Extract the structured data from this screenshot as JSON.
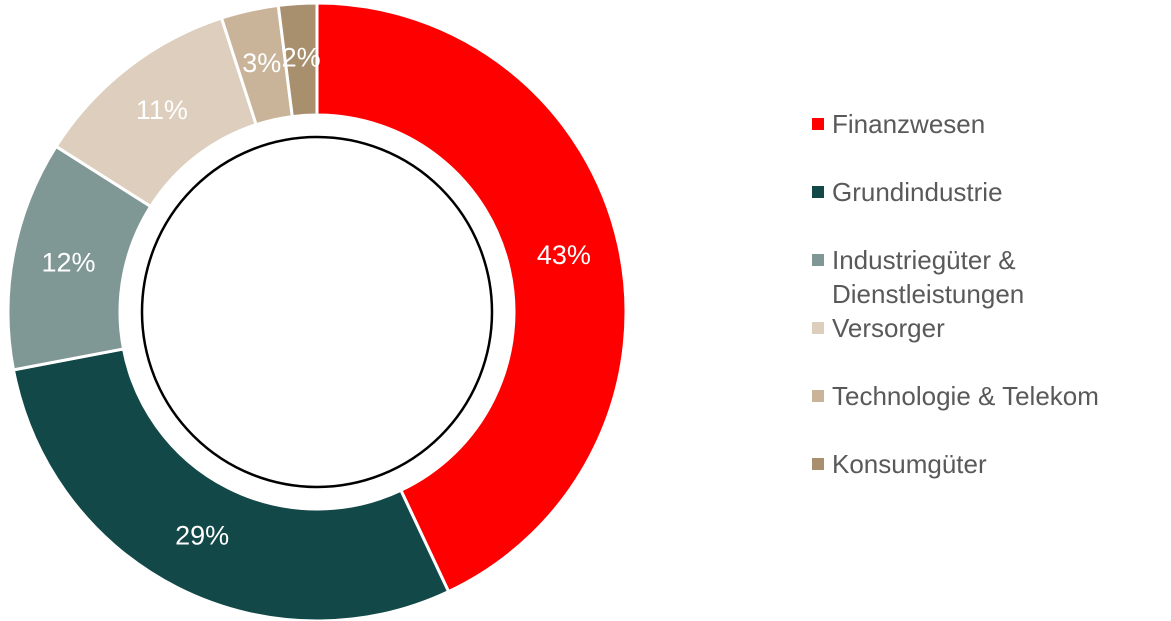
{
  "chart_data": {
    "type": "donut",
    "categories": [
      "Finanzwesen",
      "Grundindustrie",
      "Industriegüter & Dienstleistungen",
      "Versorger",
      "Technologie & Telekom",
      "Konsumgüter"
    ],
    "values": [
      43,
      29,
      12,
      11,
      3,
      2
    ],
    "value_labels": [
      "43%",
      "29%",
      "12%",
      "11%",
      "3%",
      "2%"
    ],
    "colors": [
      "#ff0000",
      "#134848",
      "#7f9795",
      "#ddcebd",
      "#c9b49a",
      "#a88f6e"
    ],
    "legend": "right"
  }
}
